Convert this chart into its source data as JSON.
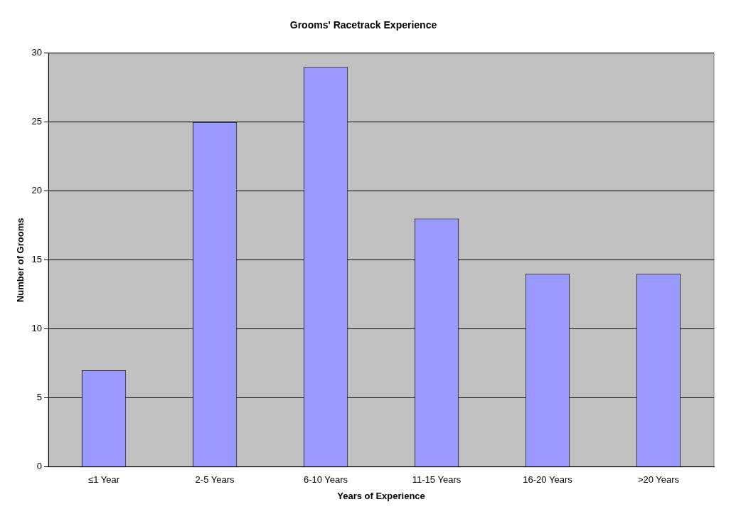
{
  "chart_data": {
    "type": "bar",
    "title": "Grooms' Racetrack Experience",
    "xlabel": "Years of Experience",
    "ylabel": "Number of Grooms",
    "categories": [
      "≤1 Year",
      "2-5 Years",
      "6-10 Years",
      "11-15 Years",
      "16-20 Years",
      ">20 Years"
    ],
    "values": [
      7,
      25,
      29,
      18,
      14,
      14
    ],
    "color": "#9999ff",
    "ylim": [
      0,
      30
    ],
    "yticks": [
      0,
      5,
      10,
      15,
      20,
      25,
      30
    ],
    "grid": "y",
    "legend": false
  }
}
